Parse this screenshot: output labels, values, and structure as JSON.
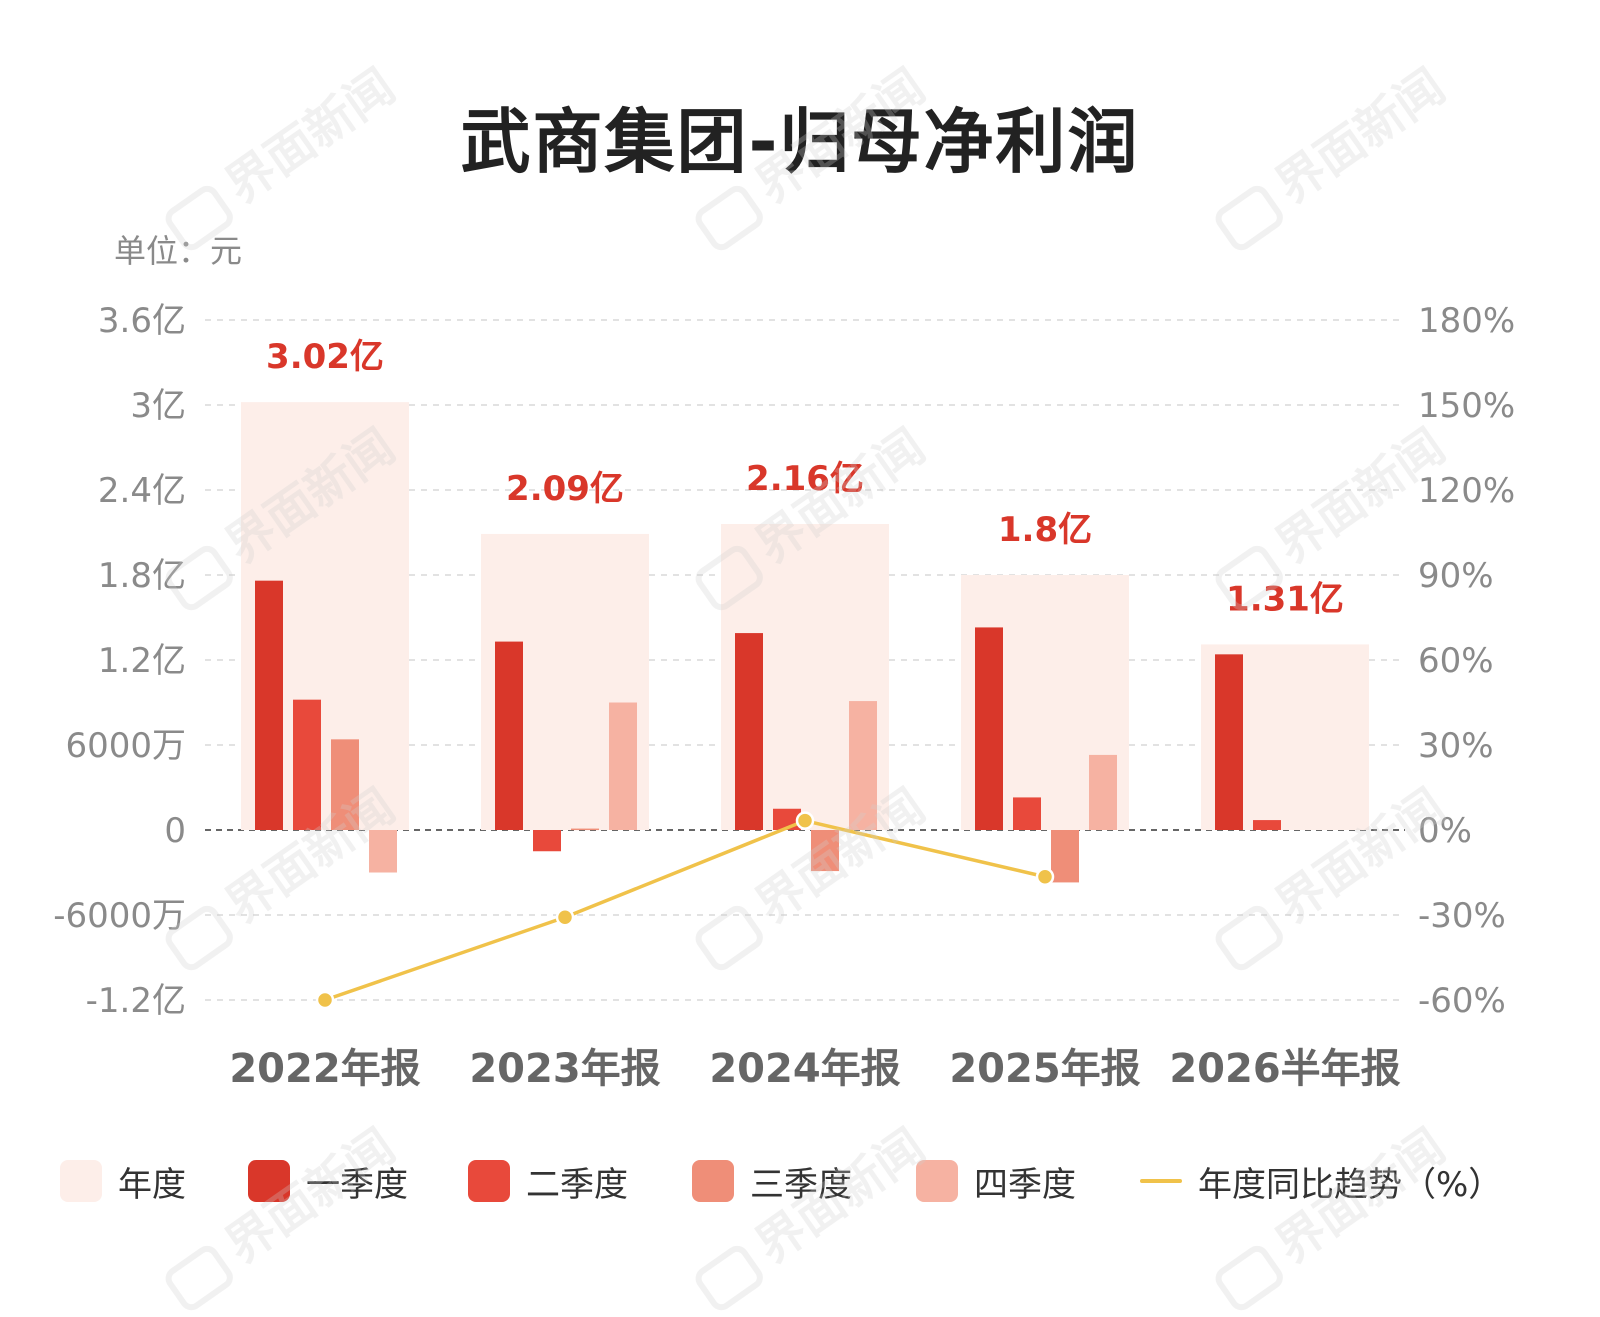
{
  "title": "武商集团-归母净利润",
  "unit_label": "单位：元",
  "watermark": "界面新闻",
  "colors": {
    "year_bg": "#fdeee9",
    "q1": "#d9372a",
    "q2": "#e8493b",
    "q3": "#ef8e78",
    "q4": "#f6b2a2",
    "trend": "#f0c24a",
    "value_label": "#d9372a",
    "axis_text": "#8a8a8a",
    "category_text": "#666666"
  },
  "legend": [
    {
      "key": "year",
      "label": "年度",
      "kind": "swatch",
      "color": "#fdeee9"
    },
    {
      "key": "q1",
      "label": "一季度",
      "kind": "swatch",
      "color": "#d9372a"
    },
    {
      "key": "q2",
      "label": "二季度",
      "kind": "swatch",
      "color": "#e8493b"
    },
    {
      "key": "q3",
      "label": "三季度",
      "kind": "swatch",
      "color": "#ef8e78"
    },
    {
      "key": "q4",
      "label": "四季度",
      "kind": "swatch",
      "color": "#f6b2a2"
    },
    {
      "key": "trend",
      "label": "年度同比趋势（%）",
      "kind": "line",
      "color": "#f0c24a"
    }
  ],
  "chart_data": {
    "type": "bar",
    "title": "武商集团-归母净利润",
    "unit": "元",
    "categories": [
      "2022年报",
      "2023年报",
      "2024年报",
      "2025年报",
      "2026半年报"
    ],
    "annual_labels": [
      "3.02亿",
      "2.09亿",
      "2.16亿",
      "1.8亿",
      "1.31亿"
    ],
    "y_left": {
      "min": -1.2,
      "max": 3.6,
      "unit": "亿",
      "ticks": [
        3.6,
        3.0,
        2.4,
        1.8,
        1.2,
        0.6,
        0,
        -0.6,
        -1.2
      ],
      "tick_labels": [
        "3.6亿",
        "3亿",
        "2.4亿",
        "1.8亿",
        "1.2亿",
        "6000万",
        "0",
        "-6000万",
        "-1.2亿"
      ]
    },
    "y_right": {
      "min": -60,
      "max": 180,
      "unit": "%",
      "ticks": [
        180,
        150,
        120,
        90,
        60,
        30,
        0,
        -30,
        -60
      ],
      "tick_labels": [
        "180%",
        "150%",
        "120%",
        "90%",
        "60%",
        "30%",
        "0%",
        "-30%",
        "-60%"
      ]
    },
    "grid": true,
    "legend_position": "bottom",
    "series": [
      {
        "key": "year",
        "name": "年度",
        "axis": "left",
        "values": [
          3.02,
          2.09,
          2.16,
          1.8,
          1.31
        ]
      },
      {
        "key": "q1",
        "name": "一季度",
        "axis": "left",
        "values": [
          1.76,
          1.33,
          1.39,
          1.43,
          1.24
        ]
      },
      {
        "key": "q2",
        "name": "二季度",
        "axis": "left",
        "values": [
          0.92,
          -0.15,
          0.15,
          0.23,
          0.07
        ]
      },
      {
        "key": "q3",
        "name": "三季度",
        "axis": "left",
        "values": [
          0.64,
          0.01,
          -0.29,
          -0.37,
          null
        ]
      },
      {
        "key": "q4",
        "name": "四季度",
        "axis": "left",
        "values": [
          -0.3,
          0.9,
          0.91,
          0.53,
          null
        ]
      },
      {
        "key": "trend",
        "name": "年度同比趋势（%）",
        "axis": "right",
        "type": "line",
        "values": [
          -60,
          -30.8,
          3.3,
          -16.5,
          null
        ]
      }
    ]
  }
}
